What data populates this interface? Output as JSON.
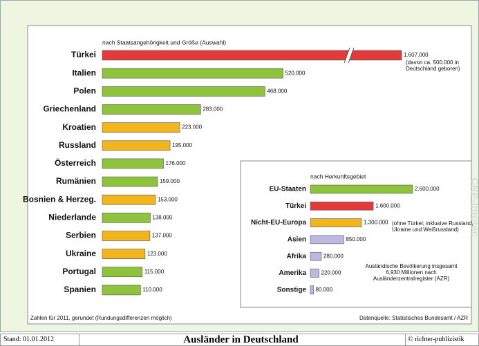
{
  "chart_data": [
    {
      "type": "bar",
      "orientation": "horizontal",
      "title": "nach Staatsangehörigkeit und Größe (Auswahl)",
      "categories": [
        "Türkei",
        "Italien",
        "Polen",
        "Griechenland",
        "Kroatien",
        "Russland",
        "Österreich",
        "Rumänien",
        "Bosnien & Herzeg.",
        "Niederlande",
        "Serbien",
        "Ukraine",
        "Portugal",
        "Spanien"
      ],
      "values": [
        1607000,
        520000,
        468000,
        283000,
        223000,
        195000,
        176000,
        159000,
        153000,
        138000,
        137000,
        123000,
        115000,
        110000
      ],
      "value_labels": [
        "1.607.000",
        "520.000",
        "468.000",
        "283.000",
        "223.000",
        "195.000",
        "176.000",
        "159.000",
        "153.000",
        "138.000",
        "137.000",
        "123.000",
        "115.000",
        "110.000"
      ],
      "colors": [
        "#e23a3a",
        "#8dc43c",
        "#8dc43c",
        "#8dc43c",
        "#f2b51c",
        "#f2b51c",
        "#8dc43c",
        "#8dc43c",
        "#f2b51c",
        "#8dc43c",
        "#f2b51c",
        "#f2b51c",
        "#8dc43c",
        "#8dc43c"
      ],
      "xlim": [
        0,
        1607000
      ],
      "axis_break": [
        700000,
        1466000
      ],
      "annotation": "(davon ca. 500.000 in Deutschland geboren)"
    },
    {
      "type": "bar",
      "orientation": "horizontal",
      "title": "nach Herkunftsgebiet",
      "categories": [
        "EU-Staaten",
        "Türkei",
        "Nicht-EU-Europa",
        "Asien",
        "Afrika",
        "Amerika",
        "Sonstige"
      ],
      "values": [
        2600000,
        1600000,
        1300000,
        850000,
        280000,
        220000,
        80000
      ],
      "value_labels": [
        "2.600.000",
        "1.600.000",
        "1.300.000",
        "850.000",
        "280.000",
        "220.000",
        "80.000"
      ],
      "colors": [
        "#8dc43c",
        "#e23a3a",
        "#f2b51c",
        "#b9b9e4",
        "#b9b9e4",
        "#b9b9e4",
        "#b9b9e4"
      ],
      "xlim": [
        0,
        2600000
      ],
      "annotation": "(ohne Türkei; inklusive Russland, Ukraine und Weißrussland)",
      "info": "Ausländische Bevölkerung insgesamt 6,930 Millionen nach Ausländerzentralregister (AZR)"
    }
  ],
  "footnote": "Zahlen für 2011, gerundet (Rundungsdifferenzen möglich)",
  "source": "Datenquelle: Statistisches Bundesamt / AZR",
  "watermark": "CRP-Infotec",
  "footer": {
    "date": "Stand: 01.01.2012",
    "title": "Ausländer in Deutschland",
    "copyright": "© richter-publizistik"
  }
}
